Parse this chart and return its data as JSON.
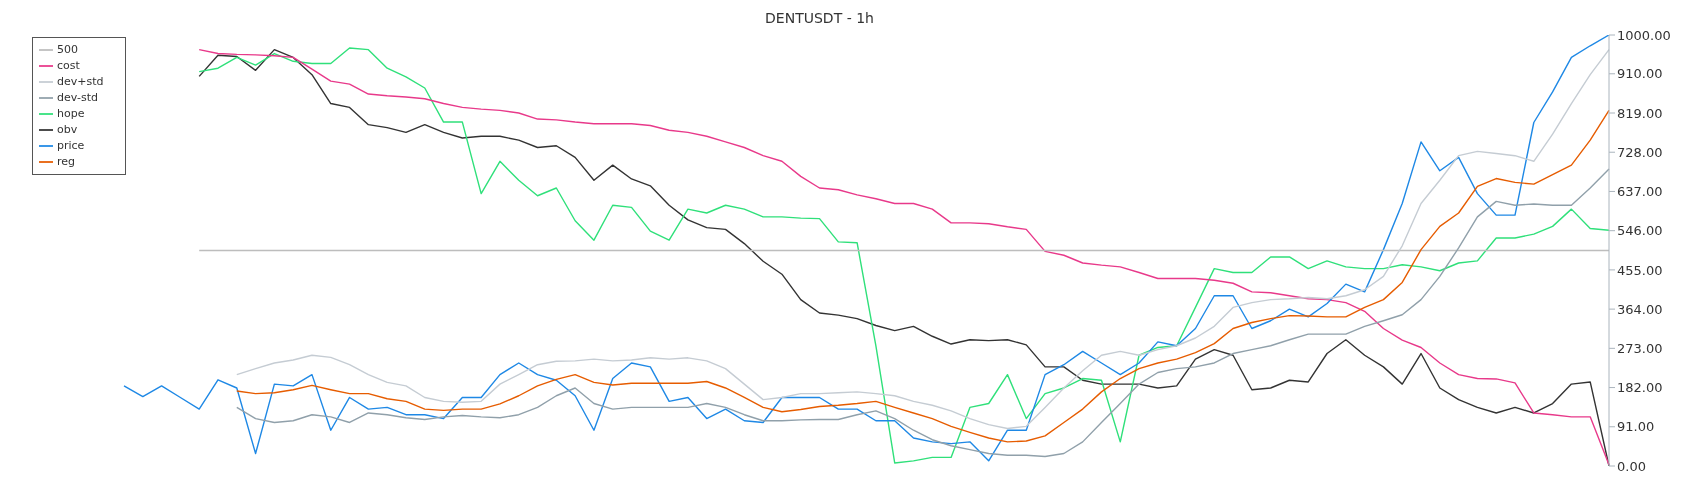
{
  "chart_data": {
    "type": "line",
    "title": "DENTUSDT - 1h",
    "categories": [
      null,
      null,
      null,
      null,
      null,
      null,
      null,
      null,
      null,
      null,
      null,
      null,
      null,
      null,
      null,
      null,
      null,
      null,
      null,
      null,
      null,
      null,
      null,
      null,
      null,
      null,
      null,
      null,
      null,
      null,
      null,
      null,
      null,
      null,
      null,
      null,
      null,
      null,
      null,
      null,
      null,
      null,
      null,
      null,
      null,
      null,
      null,
      null,
      null,
      null,
      null,
      null,
      null,
      null,
      null,
      null,
      null,
      null,
      null,
      null,
      null,
      null,
      null,
      null,
      null,
      null,
      null,
      null,
      null,
      null,
      null,
      null,
      null,
      null,
      null,
      null,
      null,
      null,
      null,
      null
    ],
    "series": [
      {
        "name": "obv",
        "color": "#333333",
        "values": [
          null,
          null,
          null,
          null,
          904,
          953,
          950,
          918,
          966,
          948,
          908,
          841,
          832,
          792,
          785,
          774,
          792,
          774,
          761,
          765,
          765,
          756,
          739,
          743,
          716,
          663,
          698,
          666,
          650,
          605,
          571,
          553,
          549,
          516,
          475,
          445,
          386,
          355,
          350,
          342,
          326,
          314,
          324,
          301,
          283,
          293,
          291,
          293,
          281,
          230,
          230,
          199,
          190,
          190,
          190,
          181,
          186,
          248,
          270,
          257,
          177,
          181,
          199,
          195,
          261,
          293,
          257,
          230,
          190,
          261,
          181,
          154,
          136,
          123,
          136,
          123,
          145,
          190,
          195,
          0
        ]
      },
      {
        "name": "hope",
        "color": "#2fe07a",
        "values": [
          null,
          null,
          null,
          null,
          915,
          923,
          948,
          930,
          957,
          939,
          934,
          934,
          970,
          966,
          923,
          903,
          877,
          798,
          798,
          632,
          707,
          663,
          627,
          645,
          569,
          524,
          605,
          600,
          545,
          524,
          596,
          587,
          605,
          596,
          578,
          578,
          575,
          574,
          520,
          518,
          279,
          7,
          12,
          20,
          20,
          136,
          145,
          212,
          110,
          168,
          181,
          203,
          199,
          56,
          257,
          275,
          279,
          368,
          458,
          449,
          449,
          485,
          485,
          458,
          476,
          462,
          458,
          458,
          467,
          462,
          453,
          471,
          476,
          529,
          529,
          538,
          556,
          596,
          551,
          547
        ]
      },
      {
        "name": "cost",
        "color": "#e8398a",
        "values": [
          null,
          null,
          null,
          null,
          966,
          957,
          955,
          954,
          952,
          948,
          921,
          893,
          886,
          863,
          859,
          856,
          852,
          841,
          832,
          828,
          825,
          819,
          805,
          803,
          798,
          794,
          794,
          794,
          790,
          779,
          774,
          765,
          752,
          739,
          720,
          707,
          672,
          645,
          641,
          629,
          620,
          609,
          609,
          596,
          564,
          564,
          562,
          555,
          549,
          498,
          489,
          471,
          466,
          462,
          449,
          435,
          435,
          435,
          431,
          424,
          404,
          402,
          395,
          388,
          386,
          379,
          359,
          319,
          292,
          275,
          239,
          212,
          203,
          202,
          193,
          123,
          119,
          114,
          114,
          3
        ]
      },
      {
        "name": "price",
        "color": "#1e88e5",
        "values": [
          186,
          161,
          186,
          159,
          132,
          200,
          181,
          29,
          190,
          186,
          212,
          83,
          159,
          132,
          136,
          119,
          119,
          110,
          159,
          159,
          212,
          239,
          212,
          199,
          163,
          83,
          203,
          239,
          230,
          150,
          159,
          110,
          132,
          105,
          101,
          159,
          159,
          159,
          132,
          132,
          105,
          105,
          65,
          56,
          52,
          56,
          12,
          83,
          83,
          212,
          235,
          266,
          239,
          212,
          239,
          288,
          279,
          319,
          395,
          395,
          319,
          337,
          364,
          346,
          377,
          422,
          404,
          502,
          609,
          752,
          685,
          716,
          632,
          582,
          582,
          797,
          868,
          948,
          975,
          1000
        ]
      },
      {
        "name": "500",
        "color": "#bdbdbd",
        "values": [
          null,
          null,
          null,
          null,
          500,
          500,
          500,
          500,
          500,
          500,
          500,
          500,
          500,
          500,
          500,
          500,
          500,
          500,
          500,
          500,
          500,
          500,
          500,
          500,
          500,
          500,
          500,
          500,
          500,
          500,
          500,
          500,
          500,
          500,
          500,
          500,
          500,
          500,
          500,
          500,
          500,
          500,
          500,
          500,
          500,
          500,
          500,
          500,
          500,
          500,
          500,
          500,
          500,
          500,
          500,
          500,
          500,
          500,
          500,
          500,
          500,
          500,
          500,
          500,
          500,
          500,
          500,
          500,
          500,
          500,
          500,
          500,
          500,
          500,
          500,
          500,
          500,
          500,
          500,
          500
        ]
      },
      {
        "name": "reg",
        "color": "#e65c00",
        "values": [
          null,
          null,
          null,
          null,
          null,
          null,
          174,
          168,
          170,
          177,
          187,
          177,
          168,
          168,
          156,
          150,
          132,
          129,
          132,
          132,
          144,
          163,
          186,
          201,
          212,
          194,
          188,
          192,
          192,
          192,
          192,
          196,
          181,
          159,
          136,
          126,
          131,
          138,
          141,
          145,
          150,
          136,
          123,
          110,
          92,
          78,
          65,
          56,
          58,
          70,
          101,
          132,
          172,
          203,
          226,
          239,
          248,
          263,
          284,
          319,
          333,
          342,
          349,
          348,
          346,
          346,
          368,
          386,
          426,
          502,
          556,
          587,
          649,
          667,
          658,
          654,
          676,
          698,
          756,
          825
        ]
      },
      {
        "name": "dev+std",
        "color": "#c5ccd3",
        "values": [
          null,
          null,
          null,
          null,
          null,
          null,
          212,
          226,
          239,
          246,
          257,
          252,
          235,
          212,
          194,
          186,
          159,
          150,
          148,
          150,
          190,
          212,
          235,
          243,
          244,
          248,
          244,
          246,
          251,
          248,
          251,
          244,
          226,
          190,
          154,
          159,
          168,
          168,
          170,
          172,
          168,
          163,
          150,
          141,
          128,
          110,
          96,
          87,
          92,
          136,
          181,
          221,
          257,
          266,
          257,
          270,
          279,
          297,
          324,
          368,
          379,
          386,
          388,
          391,
          388,
          395,
          409,
          440,
          511,
          609,
          663,
          720,
          730,
          725,
          720,
          707,
          770,
          841,
          908,
          966
        ]
      },
      {
        "name": "dev-std",
        "color": "#90a0aa",
        "values": [
          null,
          null,
          null,
          null,
          null,
          null,
          136,
          110,
          101,
          105,
          119,
          114,
          101,
          123,
          119,
          112,
          108,
          114,
          117,
          114,
          112,
          119,
          136,
          163,
          181,
          145,
          132,
          136,
          136,
          136,
          136,
          145,
          136,
          119,
          105,
          105,
          107,
          108,
          108,
          119,
          128,
          110,
          83,
          61,
          47,
          38,
          29,
          25,
          25,
          22,
          29,
          56,
          101,
          145,
          190,
          217,
          226,
          230,
          239,
          261,
          270,
          279,
          293,
          306,
          306,
          306,
          324,
          337,
          351,
          386,
          440,
          506,
          578,
          614,
          605,
          608,
          605,
          605,
          645,
          689
        ]
      }
    ],
    "ylim": [
      0,
      1000
    ],
    "yticks": [
      {
        "value": 0,
        "label": "0.00"
      },
      {
        "value": 91,
        "label": "91.00"
      },
      {
        "value": 182,
        "label": "182.00"
      },
      {
        "value": 273,
        "label": "273.00"
      },
      {
        "value": 364,
        "label": "364.00"
      },
      {
        "value": 455,
        "label": "455.00"
      },
      {
        "value": 546,
        "label": "546.00"
      },
      {
        "value": 637,
        "label": "637.00"
      },
      {
        "value": 728,
        "label": "728.00"
      },
      {
        "value": 819,
        "label": "819.00"
      },
      {
        "value": 910,
        "label": "910.00"
      },
      {
        "value": 1000,
        "label": "1000.00"
      }
    ],
    "tick_labels": "y",
    "grid": false,
    "legend": "top left",
    "marker": "none",
    "line_style": "solid"
  }
}
